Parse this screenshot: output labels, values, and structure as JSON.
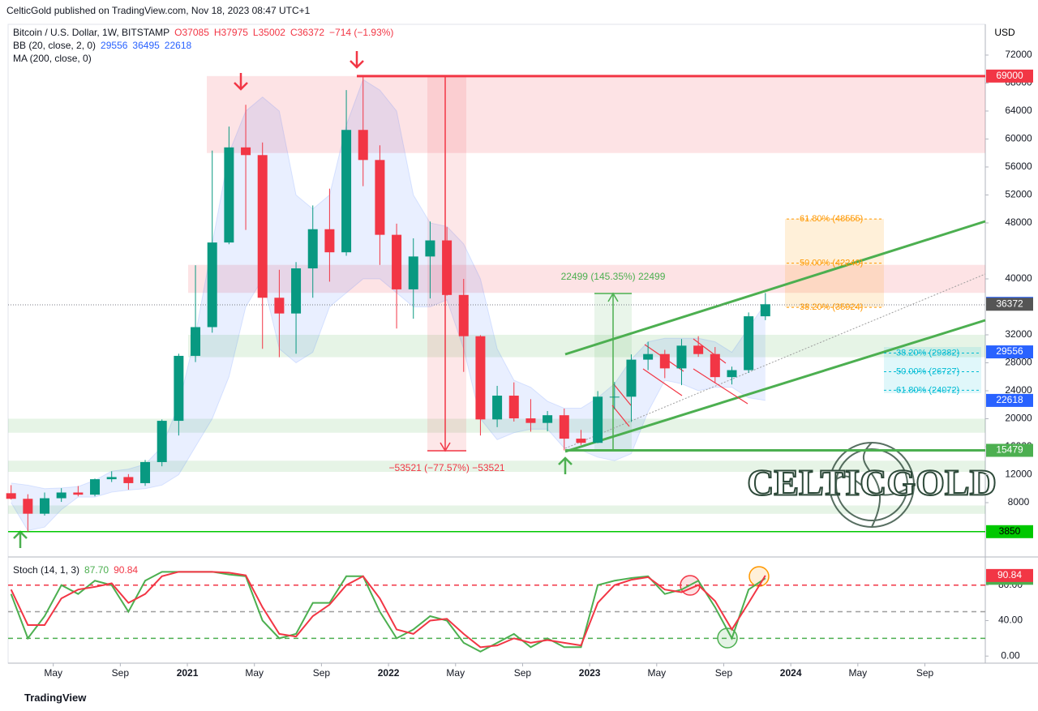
{
  "header": "CelticGold published on TradingView.com, Nov 18, 2023 08:47 UTC+1",
  "footer": "TradingView",
  "watermark": "CELTICGOLD",
  "chart_data": [
    {
      "type": "candlestick",
      "title": "Bitcoin / U.S. Dollar, 1W, BITSTAMP",
      "ohlc_legend": [
        "O37085",
        "H37975",
        "L35002",
        "C36372",
        "−714 (−1.93%)"
      ],
      "indicators": [
        {
          "name": "BB (20, close, 2, 0)",
          "values": [
            29556,
            36495,
            22618
          ]
        },
        {
          "name": "MA (200, close, 0)"
        }
      ],
      "currency": "USD",
      "up_color": "#089981",
      "down_color": "#f23645",
      "band_color": "#2962ff",
      "x": [
        "2020-02",
        "2020-03",
        "2020-04",
        "2020-05",
        "2020-06",
        "2020-07",
        "2020-08",
        "2020-09",
        "2020-10",
        "2020-11",
        "2020-12",
        "2021-01",
        "2021-02",
        "2021-03",
        "2021-04",
        "2021-05",
        "2021-06",
        "2021-07",
        "2021-08",
        "2021-09",
        "2021-10",
        "2021-11",
        "2021-12",
        "2022-01",
        "2022-02",
        "2022-03",
        "2022-04",
        "2022-05",
        "2022-06",
        "2022-07",
        "2022-08",
        "2022-09",
        "2022-10",
        "2022-11",
        "2022-12",
        "2023-01",
        "2023-02",
        "2023-03",
        "2023-04",
        "2023-05",
        "2023-06",
        "2023-07",
        "2023-08",
        "2023-09",
        "2023-10",
        "2023-11"
      ],
      "open": [
        9350,
        8550,
        6420,
        8630,
        9450,
        9140,
        11350,
        11660,
        10790,
        13800,
        19700,
        28990,
        33100,
        45200,
        58800,
        57700,
        37300,
        35050,
        41500,
        47100,
        43800,
        61300,
        57000,
        46300,
        38500,
        43200,
        45500,
        37700,
        31800,
        19900,
        23300,
        20050,
        19400,
        20500,
        17150,
        16550,
        23150,
        23150,
        28450,
        29250,
        27200,
        30450,
        29250,
        25950,
        26950,
        34650
      ],
      "high": [
        10500,
        9200,
        9450,
        10070,
        10380,
        11450,
        12480,
        12080,
        14100,
        19900,
        29300,
        41950,
        58350,
        61780,
        64900,
        59500,
        41300,
        42400,
        50500,
        52900,
        67000,
        69000,
        59100,
        47900,
        45800,
        48200,
        47400,
        40000,
        31950,
        24700,
        25200,
        22800,
        21100,
        21450,
        18400,
        23950,
        25250,
        29200,
        31000,
        29850,
        31400,
        31800,
        30250,
        27450,
        35200,
        37975
      ],
      "low": [
        8450,
        3850,
        6150,
        8110,
        8900,
        8900,
        10950,
        9850,
        10400,
        13200,
        17600,
        28100,
        32300,
        44950,
        47000,
        30000,
        28800,
        29300,
        37300,
        39600,
        43300,
        53250,
        42000,
        32900,
        34300,
        37200,
        37600,
        26700,
        17600,
        18800,
        19600,
        18150,
        18200,
        15479,
        16250,
        16500,
        21350,
        19550,
        26950,
        25800,
        24800,
        28850,
        25150,
        24900,
        26550,
        34100
      ],
      "close": [
        8550,
        6420,
        8630,
        9450,
        9140,
        11350,
        11660,
        10790,
        13800,
        19700,
        28990,
        33100,
        45200,
        58800,
        57700,
        37300,
        35050,
        41500,
        47100,
        43800,
        61300,
        57000,
        46300,
        38500,
        43200,
        45500,
        37700,
        31800,
        19900,
        23300,
        20050,
        19400,
        20500,
        17150,
        16550,
        23150,
        23150,
        28450,
        29250,
        27200,
        30450,
        29250,
        25950,
        26950,
        34650,
        36372
      ],
      "bb_upper": [
        10800,
        10500,
        10000,
        10100,
        10300,
        11200,
        12500,
        12800,
        13500,
        16000,
        22000,
        32000,
        45000,
        58000,
        64000,
        66000,
        64000,
        52000,
        50000,
        52000,
        62000,
        68500,
        67000,
        64000,
        52000,
        48000,
        47500,
        45000,
        40000,
        30000,
        25500,
        24500,
        22500,
        21500,
        21500,
        23000,
        25000,
        28500,
        31000,
        31500,
        31500,
        31500,
        31000,
        29500,
        33000,
        36495
      ],
      "bb_lower": [
        8000,
        4000,
        4500,
        7000,
        8800,
        8800,
        9500,
        9800,
        10000,
        10500,
        12000,
        16000,
        20000,
        26000,
        36000,
        40000,
        30000,
        28000,
        29500,
        36000,
        38000,
        40000,
        40000,
        38000,
        36000,
        36000,
        37000,
        30000,
        20000,
        17000,
        18000,
        18500,
        18500,
        15800,
        15500,
        14500,
        14000,
        15000,
        21000,
        25500,
        25000,
        24000,
        24500,
        24500,
        23000,
        22618
      ],
      "ylim": [
        464,
        76400
      ],
      "yticks": [
        72000,
        68000,
        64000,
        60000,
        56000,
        52000,
        48000,
        40000,
        32000,
        28000,
        24000,
        20000,
        16000,
        12000,
        8000
      ],
      "levels": [
        {
          "value": 69000,
          "color": "#f23645"
        },
        {
          "value": 15479,
          "color": "#4caf50"
        },
        {
          "value": 3850,
          "color": "#00c800"
        }
      ],
      "zones": [
        {
          "from": 58000,
          "to": 69000,
          "color": "#f23645"
        },
        {
          "from": 38000,
          "to": 42000,
          "color": "#f23645"
        },
        {
          "from": 28800,
          "to": 32000,
          "color": "#4caf50"
        },
        {
          "from": 18000,
          "to": 20000,
          "color": "#4caf50"
        },
        {
          "from": 12400,
          "to": 14000,
          "color": "#4caf50"
        },
        {
          "from": 6400,
          "to": 7600,
          "color": "#4caf50"
        }
      ],
      "fib_upper": [
        {
          "value": 48555,
          "label": "61.80% (48555)"
        },
        {
          "value": 42240,
          "label": "50.00% (42240)"
        },
        {
          "value": 35924,
          "label": "38.20% (35924)"
        }
      ],
      "fib_lower": [
        {
          "value": 29382,
          "label": "38.20% (29382)"
        },
        {
          "value": 26727,
          "label": "50.00% (26727)"
        },
        {
          "value": 24072,
          "label": "61.80% (24072)"
        }
      ],
      "measures": [
        "22499 (145.35%) 22499",
        "−53521 (−77.57%) −53521"
      ]
    },
    {
      "type": "line",
      "title": "Stoch (14, 1, 3)",
      "legend_values": [
        {
          "value": 87.7,
          "label": "87.70",
          "color": "#4caf50"
        },
        {
          "value": 90.84,
          "label": "90.84",
          "color": "#f23645"
        }
      ],
      "series": [
        {
          "color": "#4caf50",
          "values": [
            70,
            20,
            45,
            80,
            70,
            85,
            80,
            50,
            85,
            95,
            95,
            95,
            95,
            92,
            90,
            40,
            20,
            25,
            60,
            60,
            90,
            90,
            50,
            20,
            30,
            45,
            40,
            15,
            5,
            15,
            25,
            10,
            20,
            10,
            10,
            80,
            85,
            88,
            90,
            70,
            75,
            85,
            55,
            20,
            75,
            87.7
          ]
        },
        {
          "color": "#f23645",
          "values": [
            75,
            35,
            35,
            65,
            75,
            78,
            82,
            60,
            70,
            90,
            95,
            95,
            95,
            94,
            91,
            55,
            25,
            22,
            45,
            58,
            80,
            90,
            65,
            30,
            25,
            40,
            42,
            25,
            10,
            12,
            20,
            15,
            18,
            15,
            12,
            60,
            80,
            86,
            89,
            75,
            72,
            80,
            62,
            30,
            60,
            90.84
          ]
        }
      ],
      "ylim": [
        -8,
        109
      ],
      "yticks": [
        {
          "value": 80,
          "label": "80.00"
        },
        {
          "value": 40,
          "label": "40.00"
        },
        {
          "value": 0,
          "label": "0.00"
        }
      ],
      "bands": [
        {
          "value": 80,
          "color": "#f23645"
        },
        {
          "value": 50,
          "color": "#9e9e9e"
        },
        {
          "value": 20,
          "color": "#4caf50"
        }
      ],
      "xticks": [
        {
          "value": "2020-05",
          "label": "May"
        },
        {
          "value": "2020-09",
          "label": "Sep"
        },
        {
          "value": "2021-01",
          "label": "2021"
        },
        {
          "value": "2021-05",
          "label": "May"
        },
        {
          "value": "2021-09",
          "label": "Sep"
        },
        {
          "value": "2022-01",
          "label": "2022"
        },
        {
          "value": "2022-05",
          "label": "May"
        },
        {
          "value": "2022-09",
          "label": "Sep"
        },
        {
          "value": "2023-01",
          "label": "2023"
        },
        {
          "value": "2023-05",
          "label": "May"
        },
        {
          "value": "2023-09",
          "label": "Sep"
        },
        {
          "value": "2024-01",
          "label": "2024"
        },
        {
          "value": "2024-05",
          "label": "May"
        },
        {
          "value": "2024-09",
          "label": "Sep"
        }
      ]
    }
  ]
}
